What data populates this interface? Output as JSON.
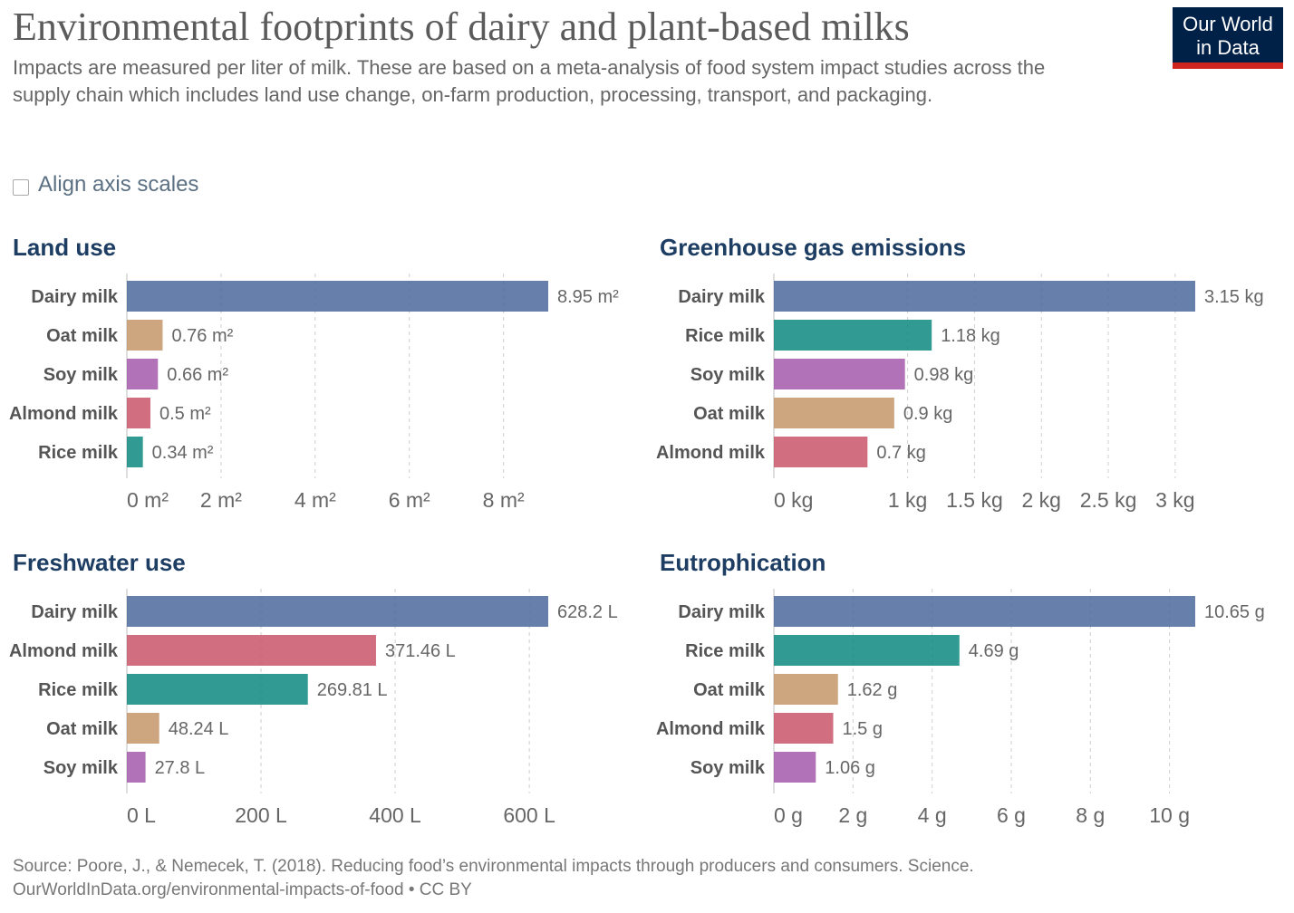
{
  "header": {
    "title": "Environmental footprints of dairy and plant-based milks",
    "subtitle": "Impacts are measured per liter of milk. These are based on a meta-analysis of food system impact studies across the supply chain which includes land use change, on-farm production, processing, transport, and packaging.",
    "logo_line1": "Our World",
    "logo_line2": "in Data"
  },
  "controls": {
    "align_axis_label": "Align axis scales",
    "align_axis_checked": false
  },
  "colors": {
    "Dairy milk": "#4c6a9c",
    "Oat milk": "#c4976a",
    "Soy milk": "#a559aa",
    "Almond milk": "#c9566b",
    "Rice milk": "#0d8a80"
  },
  "chart_data": [
    {
      "type": "bar",
      "title": "Land use",
      "unit": "m²",
      "categories": [
        "Dairy milk",
        "Oat milk",
        "Soy milk",
        "Almond milk",
        "Rice milk"
      ],
      "values": [
        8.95,
        0.76,
        0.66,
        0.5,
        0.34
      ],
      "value_labels": [
        "8.95 m²",
        "0.76 m²",
        "0.66 m²",
        "0.5 m²",
        "0.34 m²"
      ],
      "xlim": [
        0,
        8.95
      ],
      "ticks": [
        0,
        2,
        4,
        6,
        8
      ],
      "tick_labels": [
        "0 m²",
        "2 m²",
        "4 m²",
        "6 m²",
        "8 m²"
      ],
      "grid": true
    },
    {
      "type": "bar",
      "title": "Greenhouse gas emissions",
      "unit": "kg",
      "categories": [
        "Dairy milk",
        "Rice milk",
        "Soy milk",
        "Oat milk",
        "Almond milk"
      ],
      "values": [
        3.15,
        1.18,
        0.98,
        0.9,
        0.7
      ],
      "value_labels": [
        "3.15 kg",
        "1.18 kg",
        "0.98 kg",
        "0.9 kg",
        "0.7 kg"
      ],
      "xlim": [
        0,
        3.15
      ],
      "ticks": [
        0,
        1,
        1.5,
        2,
        2.5,
        3
      ],
      "tick_labels": [
        "0 kg",
        "1 kg",
        "1.5 kg",
        "2 kg",
        "2.5 kg",
        "3 kg"
      ],
      "grid": true
    },
    {
      "type": "bar",
      "title": "Freshwater use",
      "unit": "L",
      "categories": [
        "Dairy milk",
        "Almond milk",
        "Rice milk",
        "Oat milk",
        "Soy milk"
      ],
      "values": [
        628.2,
        371.46,
        269.81,
        48.24,
        27.8
      ],
      "value_labels": [
        "628.2 L",
        "371.46 L",
        "269.81 L",
        "48.24 L",
        "27.8 L"
      ],
      "xlim": [
        0,
        628.2
      ],
      "ticks": [
        0,
        200,
        400,
        600
      ],
      "tick_labels": [
        "0 L",
        "200 L",
        "400 L",
        "600 L"
      ],
      "grid": true
    },
    {
      "type": "bar",
      "title": "Eutrophication",
      "unit": "g",
      "categories": [
        "Dairy milk",
        "Rice milk",
        "Oat milk",
        "Almond milk",
        "Soy milk"
      ],
      "values": [
        10.65,
        4.69,
        1.62,
        1.5,
        1.06
      ],
      "value_labels": [
        "10.65 g",
        "4.69 g",
        "1.62 g",
        "1.5 g",
        "1.06 g"
      ],
      "xlim": [
        0,
        10.65
      ],
      "ticks": [
        0,
        2,
        4,
        6,
        8,
        10
      ],
      "tick_labels": [
        "0 g",
        "2 g",
        "4 g",
        "6 g",
        "8 g",
        "10 g"
      ],
      "grid": true
    }
  ],
  "footer": {
    "source": "Source: Poore, J., & Nemecek, T. (2018). Reducing food’s environmental impacts through producers and consumers. Science.",
    "credit": "OurWorldInData.org/environmental-impacts-of-food • CC BY"
  }
}
